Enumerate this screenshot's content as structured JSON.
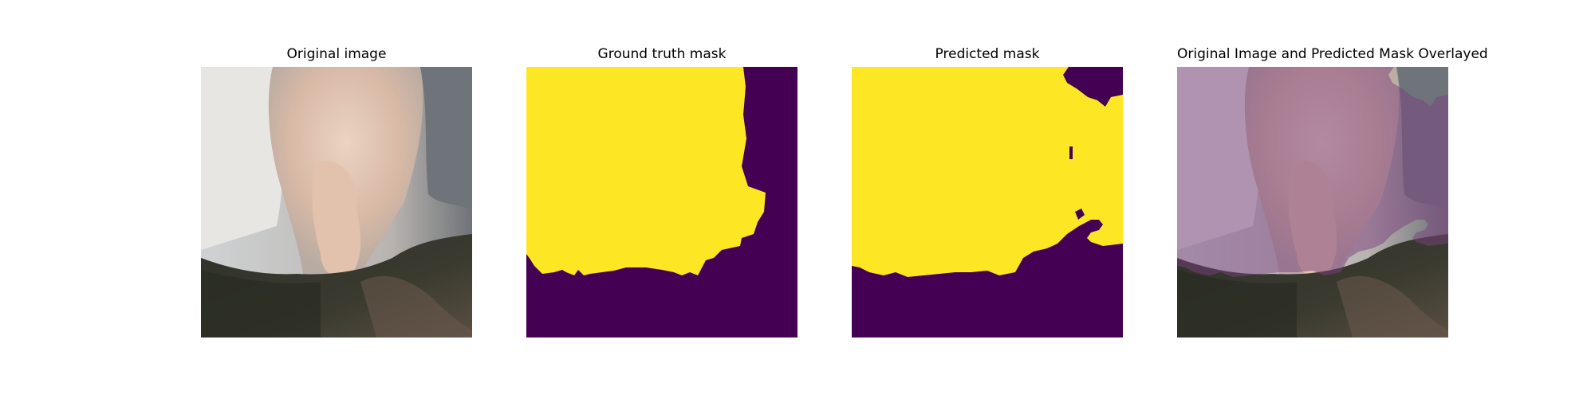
{
  "figure": {
    "panels": [
      {
        "title": "Original image",
        "content": "satellite photo of wildfire smoke plume over forested terrain"
      },
      {
        "title": "Ground truth mask",
        "content": "binary segmentation mask (yellow = smoke, purple = background)"
      },
      {
        "title": "Predicted mask",
        "content": "binary segmentation mask (yellow = smoke, purple = background)"
      },
      {
        "title": "Original Image and Predicted Mask Overlayed",
        "content": "original image with purple tint over predicted smoke region"
      }
    ],
    "colors": {
      "mask_foreground": "#fde725",
      "mask_background": "#440154",
      "smoke_light": "#e8ddd2",
      "smoke_warm": "#d9b8a4",
      "forest_dark": "#2e3328",
      "overlay_tint": "#7a3f7e"
    }
  }
}
